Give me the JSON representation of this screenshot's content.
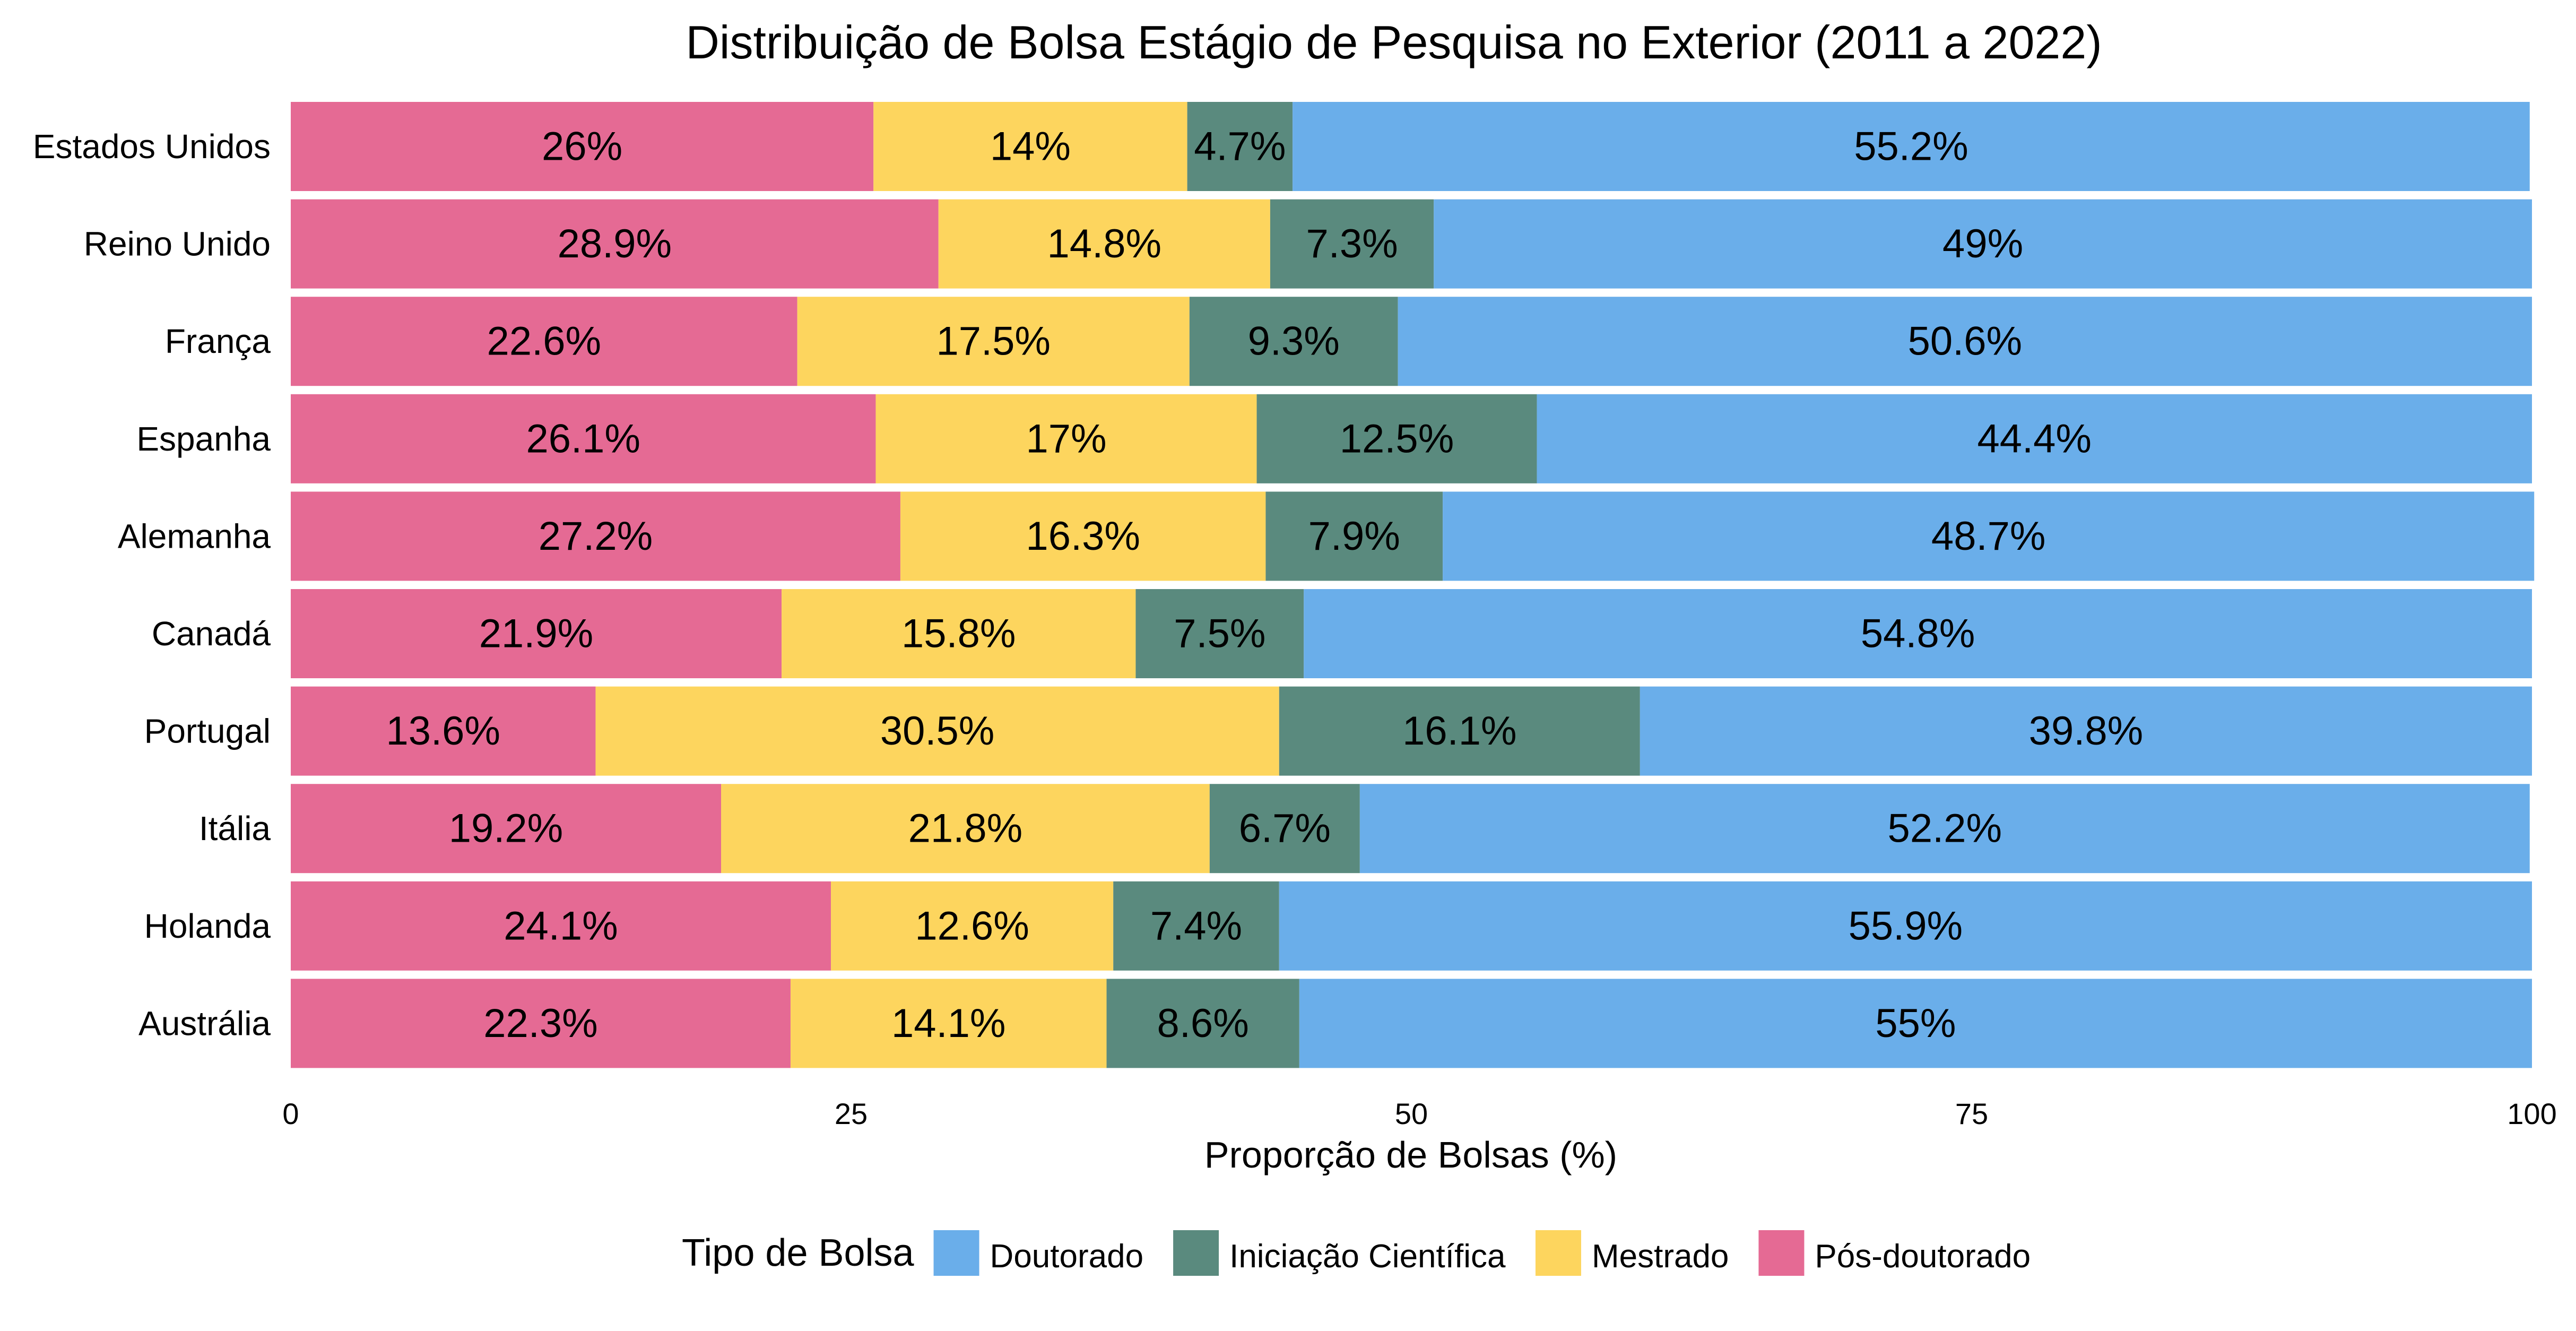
{
  "chart_data": {
    "type": "bar",
    "orientation": "horizontal",
    "stacked": true,
    "title": "Distribuição de Bolsa Estágio de Pesquisa no Exterior (2011 a 2022)",
    "xlabel": "Proporção de Bolsas (%)",
    "ylabel": "",
    "xlim": [
      0,
      100
    ],
    "xticks": [
      0,
      25,
      50,
      75,
      100
    ],
    "grid": false,
    "legend_position": "bottom",
    "legend_title": "Tipo de Bolsa",
    "categories": [
      "Estados Unidos",
      "Reino Unido",
      "França",
      "Espanha",
      "Alemanha",
      "Canadá",
      "Portugal",
      "Itália",
      "Holanda",
      "Austrália"
    ],
    "stack_order": [
      "Pós-doutorado",
      "Mestrado",
      "Iniciação Científica",
      "Doutorado"
    ],
    "series": [
      {
        "name": "Doutorado",
        "color": "#6aaeea",
        "values": [
          55.2,
          49,
          50.6,
          44.4,
          48.7,
          54.8,
          39.8,
          52.2,
          55.9,
          55
        ],
        "labels": [
          "55.2%",
          "49%",
          "50.6%",
          "44.4%",
          "48.7%",
          "54.8%",
          "39.8%",
          "52.2%",
          "55.9%",
          "55%"
        ]
      },
      {
        "name": "Iniciação Científica",
        "color": "#5a8a7e",
        "values": [
          4.7,
          7.3,
          9.3,
          12.5,
          7.9,
          7.5,
          16.1,
          6.7,
          7.4,
          8.6
        ],
        "labels": [
          "4.7%",
          "7.3%",
          "9.3%",
          "12.5%",
          "7.9%",
          "7.5%",
          "16.1%",
          "6.7%",
          "7.4%",
          "8.6%"
        ]
      },
      {
        "name": "Mestrado",
        "color": "#fdd55e",
        "values": [
          14,
          14.8,
          17.5,
          17,
          16.3,
          15.8,
          30.5,
          21.8,
          12.6,
          14.1
        ],
        "labels": [
          "14%",
          "14.8%",
          "17.5%",
          "17%",
          "16.3%",
          "15.8%",
          "30.5%",
          "21.8%",
          "12.6%",
          "14.1%"
        ]
      },
      {
        "name": "Pós-doutorado",
        "color": "#e56a94",
        "values": [
          26,
          28.9,
          22.6,
          26.1,
          27.2,
          21.9,
          13.6,
          19.2,
          24.1,
          22.3
        ],
        "labels": [
          "26%",
          "28.9%",
          "22.6%",
          "26.1%",
          "27.2%",
          "21.9%",
          "13.6%",
          "19.2%",
          "24.1%",
          "22.3%"
        ]
      }
    ]
  }
}
